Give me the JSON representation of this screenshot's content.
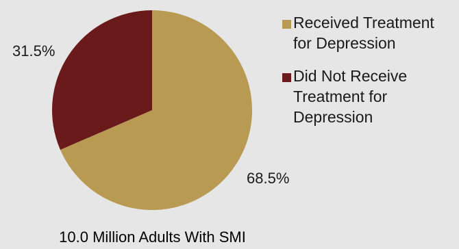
{
  "chart_data": {
    "type": "pie",
    "title": "10.0 Million Adults With SMI",
    "categories": [
      "Received Treatment for Depression",
      "Did Not Receive Treatment for Depression"
    ],
    "values": [
      68.5,
      31.5
    ],
    "value_labels": [
      "68.5%",
      "31.5%"
    ],
    "colors": [
      "#b89a52",
      "#6b1a1c"
    ],
    "legend": {
      "position": "right",
      "items": [
        {
          "line1": "Received Treatment",
          "line2": "for Depression"
        },
        {
          "line1": "Did Not Receive",
          "line2": "Treatment for",
          "line3": "Depression"
        }
      ]
    }
  }
}
